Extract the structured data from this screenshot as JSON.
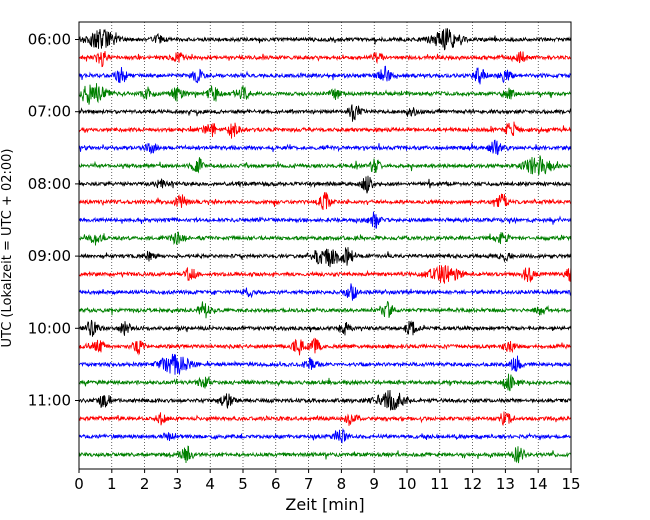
{
  "chart_data": {
    "type": "line",
    "title": "",
    "xlabel": "Zeit  [min]",
    "ylabel": "UTC (Lokalzeit = UTC + 02:00)",
    "xlim": [
      0,
      15
    ],
    "x_ticks": [
      "0",
      "1",
      "2",
      "3",
      "4",
      "5",
      "6",
      "7",
      "8",
      "9",
      "10",
      "11",
      "12",
      "13",
      "14",
      "15"
    ],
    "y_tick_labels": [
      "06:00",
      "07:00",
      "08:00",
      "09:00",
      "10:00",
      "11:00"
    ],
    "grid": "vertical dotted at every minute",
    "trace_colors": [
      "#000000",
      "#ff0000",
      "#0000ff",
      "#008000"
    ],
    "trace_start_times": [
      "06:00",
      "06:15",
      "06:30",
      "06:45",
      "07:00",
      "07:15",
      "07:30",
      "07:45",
      "08:00",
      "08:15",
      "08:30",
      "08:45",
      "09:00",
      "09:15",
      "09:30",
      "09:45",
      "10:00",
      "10:15",
      "10:30",
      "10:45",
      "11:00",
      "11:15",
      "11:30",
      "11:45"
    ],
    "events": [
      {
        "row": 0,
        "t": 0.7,
        "a": 1.3
      },
      {
        "row": 0,
        "t": 2.4,
        "a": 0.6
      },
      {
        "row": 0,
        "t": 11.2,
        "a": 1.4
      },
      {
        "row": 1,
        "t": 0.7,
        "a": 1.1
      },
      {
        "row": 1,
        "t": 3.0,
        "a": 0.7
      },
      {
        "row": 1,
        "t": 9.1,
        "a": 0.6
      },
      {
        "row": 1,
        "t": 13.5,
        "a": 0.7
      },
      {
        "row": 2,
        "t": 1.3,
        "a": 1.1
      },
      {
        "row": 2,
        "t": 3.6,
        "a": 0.8
      },
      {
        "row": 2,
        "t": 9.3,
        "a": 1.2
      },
      {
        "row": 2,
        "t": 12.2,
        "a": 1.1
      },
      {
        "row": 2,
        "t": 13.0,
        "a": 0.8
      },
      {
        "row": 3,
        "t": 0.4,
        "a": 1.3
      },
      {
        "row": 3,
        "t": 2.1,
        "a": 0.8
      },
      {
        "row": 3,
        "t": 3.0,
        "a": 0.9
      },
      {
        "row": 3,
        "t": 4.1,
        "a": 1.1
      },
      {
        "row": 3,
        "t": 5.0,
        "a": 1.2
      },
      {
        "row": 3,
        "t": 7.8,
        "a": 0.7
      },
      {
        "row": 3,
        "t": 13.1,
        "a": 0.8
      },
      {
        "row": 4,
        "t": 8.4,
        "a": 1.2
      },
      {
        "row": 4,
        "t": 10.2,
        "a": 0.5
      },
      {
        "row": 5,
        "t": 4.0,
        "a": 1.0
      },
      {
        "row": 5,
        "t": 4.7,
        "a": 0.9
      },
      {
        "row": 5,
        "t": 13.2,
        "a": 1.2
      },
      {
        "row": 6,
        "t": 2.2,
        "a": 0.6
      },
      {
        "row": 6,
        "t": 12.7,
        "a": 1.1
      },
      {
        "row": 7,
        "t": 3.6,
        "a": 1.2
      },
      {
        "row": 7,
        "t": 9.0,
        "a": 0.9
      },
      {
        "row": 7,
        "t": 14.0,
        "a": 1.3
      },
      {
        "row": 8,
        "t": 2.5,
        "a": 0.6
      },
      {
        "row": 8,
        "t": 8.8,
        "a": 1.2
      },
      {
        "row": 9,
        "t": 3.1,
        "a": 0.9
      },
      {
        "row": 9,
        "t": 7.5,
        "a": 1.2
      },
      {
        "row": 9,
        "t": 12.9,
        "a": 1.0
      },
      {
        "row": 10,
        "t": 9.0,
        "a": 1.2
      },
      {
        "row": 11,
        "t": 0.5,
        "a": 0.8
      },
      {
        "row": 11,
        "t": 3.0,
        "a": 0.9
      },
      {
        "row": 11,
        "t": 12.9,
        "a": 0.8
      },
      {
        "row": 12,
        "t": 2.1,
        "a": 0.6
      },
      {
        "row": 12,
        "t": 7.6,
        "a": 1.4
      },
      {
        "row": 12,
        "t": 8.2,
        "a": 0.9
      },
      {
        "row": 12,
        "t": 13.0,
        "a": 0.5
      },
      {
        "row": 13,
        "t": 3.4,
        "a": 0.8
      },
      {
        "row": 13,
        "t": 11.1,
        "a": 1.3
      },
      {
        "row": 13,
        "t": 13.7,
        "a": 1.0
      },
      {
        "row": 13,
        "t": 15.0,
        "a": 0.9
      },
      {
        "row": 14,
        "t": 5.2,
        "a": 0.6
      },
      {
        "row": 14,
        "t": 8.3,
        "a": 1.1
      },
      {
        "row": 15,
        "t": 3.8,
        "a": 1.2
      },
      {
        "row": 15,
        "t": 9.4,
        "a": 1.0
      },
      {
        "row": 15,
        "t": 14.1,
        "a": 0.6
      },
      {
        "row": 16,
        "t": 0.4,
        "a": 1.1
      },
      {
        "row": 16,
        "t": 1.4,
        "a": 0.8
      },
      {
        "row": 16,
        "t": 8.1,
        "a": 0.8
      },
      {
        "row": 16,
        "t": 10.1,
        "a": 1.1
      },
      {
        "row": 17,
        "t": 0.6,
        "a": 0.8
      },
      {
        "row": 17,
        "t": 1.8,
        "a": 0.9
      },
      {
        "row": 17,
        "t": 6.7,
        "a": 1.1
      },
      {
        "row": 17,
        "t": 7.2,
        "a": 0.9
      },
      {
        "row": 17,
        "t": 13.1,
        "a": 0.8
      },
      {
        "row": 18,
        "t": 2.9,
        "a": 1.4
      },
      {
        "row": 18,
        "t": 7.0,
        "a": 0.8
      },
      {
        "row": 18,
        "t": 13.3,
        "a": 0.8
      },
      {
        "row": 19,
        "t": 3.8,
        "a": 0.7
      },
      {
        "row": 19,
        "t": 13.1,
        "a": 1.1
      },
      {
        "row": 20,
        "t": 0.8,
        "a": 1.0
      },
      {
        "row": 20,
        "t": 4.5,
        "a": 1.0
      },
      {
        "row": 20,
        "t": 9.5,
        "a": 1.3
      },
      {
        "row": 21,
        "t": 2.5,
        "a": 0.8
      },
      {
        "row": 21,
        "t": 8.3,
        "a": 0.9
      },
      {
        "row": 21,
        "t": 13.0,
        "a": 1.1
      },
      {
        "row": 22,
        "t": 2.7,
        "a": 0.6
      },
      {
        "row": 22,
        "t": 8.0,
        "a": 0.9
      },
      {
        "row": 23,
        "t": 3.3,
        "a": 1.0
      },
      {
        "row": 23,
        "t": 13.4,
        "a": 1.1
      }
    ]
  }
}
